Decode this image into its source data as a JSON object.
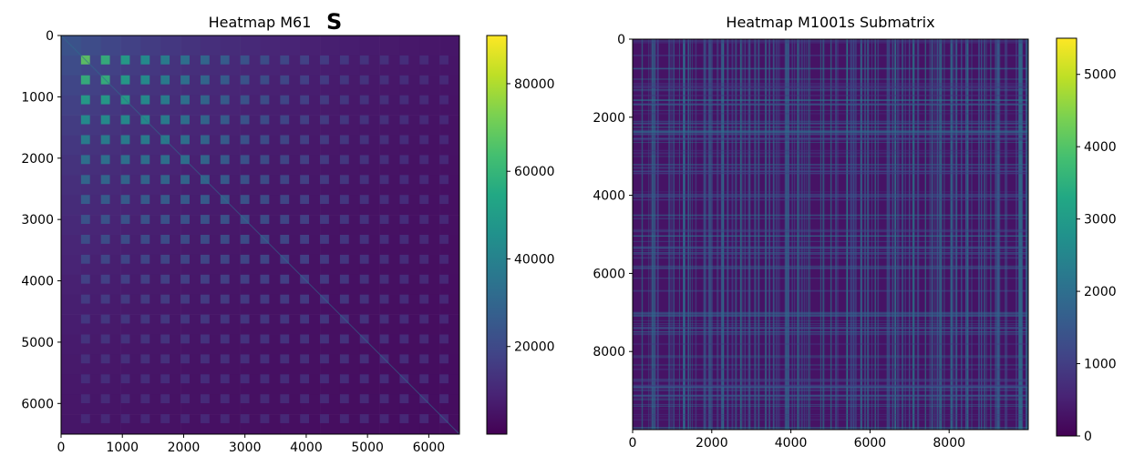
{
  "chart_data": [
    {
      "type": "heatmap",
      "title": "Heatmap M61",
      "title_suffix": "S",
      "xlim": [
        0,
        6500
      ],
      "ylim": [
        6500,
        0
      ],
      "x_ticks": [
        0,
        1000,
        2000,
        3000,
        4000,
        5000,
        6000
      ],
      "y_ticks": [
        0,
        1000,
        2000,
        3000,
        4000,
        5000,
        6000
      ],
      "colorbar": {
        "min": 0,
        "max": 91000,
        "ticks": [
          20000,
          40000,
          60000,
          80000
        ]
      },
      "colormap": "viridis",
      "pattern": "grid of blocks, brightest near top-left corner, intensity decreasing toward bottom-right"
    },
    {
      "type": "heatmap",
      "title": "Heatmap M1001s Submatrix",
      "xlim": [
        0,
        10000
      ],
      "ylim": [
        10000,
        0
      ],
      "x_ticks": [
        0,
        2000,
        4000,
        6000,
        8000
      ],
      "y_ticks": [
        0,
        2000,
        4000,
        6000,
        8000
      ],
      "colorbar": {
        "min": 0,
        "max": 5500,
        "ticks": [
          0,
          1000,
          2000,
          3000,
          4000,
          5000
        ]
      },
      "colormap": "viridis",
      "pattern": "dense vertical and horizontal stripes, mostly low values"
    }
  ]
}
